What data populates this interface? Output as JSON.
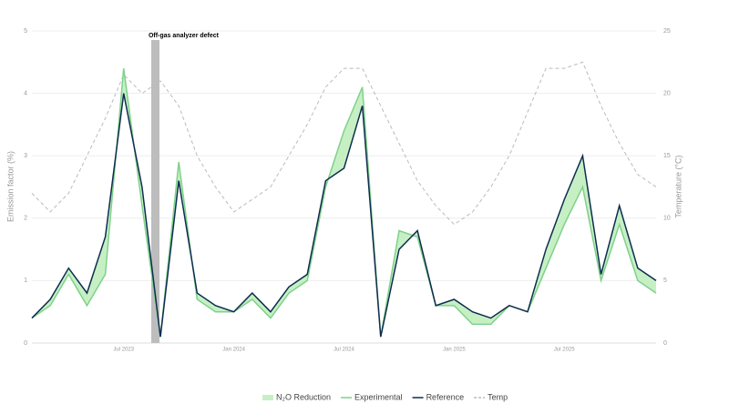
{
  "chart_data": {
    "type": "line",
    "y_label": "Emission factor (%)",
    "y2_label": "Temperature (°C)",
    "x": [
      "Feb 2023",
      "Mar 2023",
      "Apr 2023",
      "May 2023",
      "Jun 2023",
      "Jul 2023",
      "Aug 2023",
      "Sep 2023",
      "Oct 2023",
      "Nov 2023",
      "Dec 2023",
      "Jan 2024",
      "Feb 2024",
      "Mar 2024",
      "Apr 2024",
      "May 2024",
      "Jun 2024",
      "Jul 2024",
      "Aug 2024",
      "Sep 2024",
      "Oct 2024",
      "Nov 2024",
      "Dec 2024",
      "Jan 2025",
      "Feb 2025",
      "Mar 2025",
      "Apr 2025",
      "May 2025",
      "Jun 2025",
      "Jul 2025",
      "Aug 2025",
      "Sep 2025",
      "Oct 2025",
      "Nov 2025",
      "Dec 2025"
    ],
    "xticks": [
      "Jul 2023",
      "Jan 2024",
      "Jul 2024",
      "Jan 2025",
      "Jul 2025"
    ],
    "series": [
      {
        "name": "Reference",
        "color": "#0d2d4f",
        "values": [
          0.4,
          0.7,
          1.2,
          0.8,
          1.7,
          4.0,
          2.5,
          0.1,
          2.6,
          0.8,
          0.6,
          0.5,
          0.8,
          0.5,
          0.9,
          1.1,
          2.6,
          2.8,
          3.8,
          0.1,
          1.5,
          1.8,
          0.6,
          0.7,
          0.5,
          0.4,
          0.6,
          0.5,
          1.5,
          2.3,
          3.0,
          1.1,
          2.2,
          1.2,
          1.0
        ]
      },
      {
        "name": "Experimental",
        "color": "#7fd18a",
        "values": [
          0.4,
          0.6,
          1.1,
          0.6,
          1.1,
          4.4,
          2.2,
          0.1,
          2.9,
          0.7,
          0.5,
          0.5,
          0.7,
          0.4,
          0.8,
          1.0,
          2.5,
          3.4,
          4.1,
          0.1,
          1.8,
          1.7,
          0.6,
          0.6,
          0.3,
          0.3,
          0.6,
          0.5,
          1.2,
          1.9,
          2.5,
          1.0,
          1.9,
          1.0,
          0.8
        ]
      },
      {
        "name": "Temp",
        "color": "#bbbbbb",
        "axis": "y2",
        "dashed": true,
        "values": [
          12,
          10.5,
          12,
          15,
          18,
          21.5,
          20,
          21,
          19,
          15,
          12.5,
          10.5,
          11.5,
          12.5,
          15,
          17.5,
          20.5,
          22,
          22,
          19,
          16,
          13,
          11,
          9.5,
          10.5,
          12.5,
          15,
          18.5,
          22,
          22,
          22.5,
          19,
          16,
          13.5,
          12.5
        ]
      }
    ],
    "fill": {
      "name": "N₂O Reduction",
      "color": "#c6f0c4"
    },
    "annotation": {
      "text": "Off-gas analyzer defect",
      "x": [
        "Aug 2023",
        "Sep 2023"
      ],
      "color": "#bdbdbd"
    },
    "ylim": [
      0,
      5
    ],
    "yticks": [
      0,
      1,
      2,
      3,
      4,
      5
    ],
    "y2lim": [
      0,
      25
    ],
    "y2ticks": [
      0,
      5,
      10,
      15,
      20,
      25
    ],
    "grid": true,
    "legend": "bottom"
  }
}
